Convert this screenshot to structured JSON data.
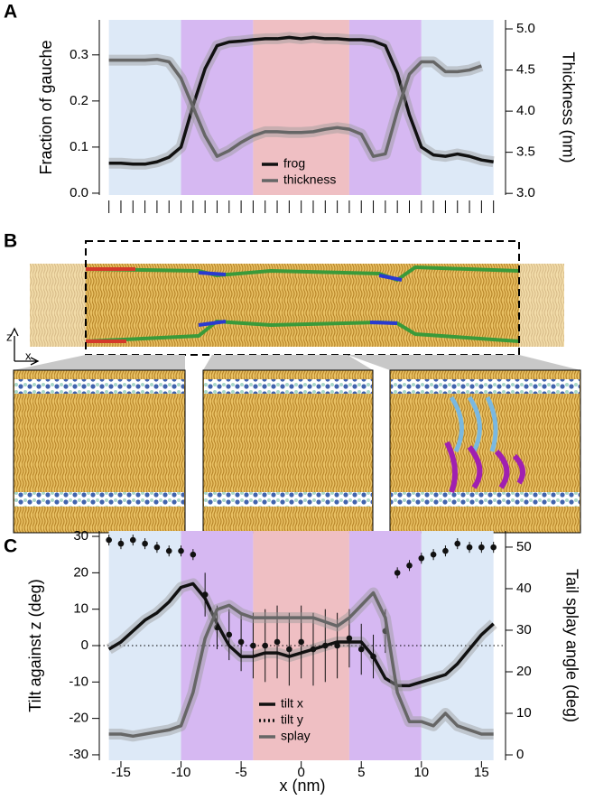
{
  "panel_labels": [
    "A",
    "B",
    "C"
  ],
  "axes_glyph": {
    "z": "z",
    "x": "x"
  },
  "chart_data": [
    {
      "type": "line",
      "ylabel": "Fraction of gauche",
      "y2label": "Thickness (nm)",
      "xlim": [
        -16.8,
        17
      ],
      "xticks": [
        -16,
        -15,
        -14,
        -13,
        -12,
        -11,
        -10,
        -9,
        -8,
        -7,
        -6,
        -5,
        -4,
        -3,
        -2,
        -1,
        0,
        1,
        2,
        3,
        4,
        5,
        6,
        7,
        8,
        9,
        10,
        11,
        12,
        13,
        14,
        15,
        16
      ],
      "xtick_labels": false,
      "ylim": [
        -0.004,
        0.376
      ],
      "yticks": [
        {
          "value": 0,
          "label": "0.0"
        },
        0.1,
        0.2,
        0.3
      ],
      "y2lim": [
        2.98,
        5.11
      ],
      "y2ticks": [
        {
          "value": 3,
          "label": "3.0"
        },
        3.5,
        {
          "value": 4,
          "label": "4.0"
        },
        4.5,
        {
          "value": 5,
          "label": "5.0"
        }
      ],
      "regions": [
        {
          "x": [
            -16,
            -10
          ],
          "color": "#dde9f7"
        },
        {
          "x": [
            -10,
            -4
          ],
          "color": "#d6b8f2"
        },
        {
          "x": [
            -4,
            4
          ],
          "color": "#efbfc3"
        },
        {
          "x": [
            4,
            10
          ],
          "color": "#d6b8f2"
        },
        {
          "x": [
            10,
            16
          ],
          "color": "#dde9f7"
        }
      ],
      "x": [
        -16,
        -15,
        -14,
        -13,
        -12,
        -11,
        -10,
        -9,
        -8,
        -7,
        -6,
        -5,
        -4,
        -3,
        -2,
        -1,
        0,
        1,
        2,
        3,
        4,
        5,
        6,
        7,
        8,
        9,
        10,
        11,
        12,
        13,
        14,
        15,
        16
      ],
      "series": [
        {
          "name": "frog",
          "color": "#111111",
          "values": [
            0.065,
            0.065,
            0.063,
            0.063,
            0.068,
            0.078,
            0.1,
            0.19,
            0.27,
            0.32,
            0.328,
            0.33,
            0.333,
            0.335,
            0.335,
            0.338,
            0.335,
            0.338,
            0.335,
            0.335,
            0.333,
            0.333,
            0.33,
            0.32,
            0.26,
            0.17,
            0.1,
            0.083,
            0.08,
            0.085,
            0.08,
            0.072,
            0.068
          ]
        },
        {
          "name": "thickness",
          "color": "#666666",
          "axis": "y2",
          "values": [
            4.62,
            4.62,
            4.62,
            4.62,
            4.63,
            4.6,
            4.4,
            4.05,
            3.7,
            3.45,
            3.52,
            3.62,
            3.7,
            3.75,
            3.75,
            3.74,
            3.74,
            3.75,
            3.78,
            3.8,
            3.78,
            3.72,
            3.45,
            3.48,
            4.0,
            4.45,
            4.6,
            4.6,
            4.48,
            4.48,
            4.5,
            4.55,
            null
          ]
        }
      ]
    },
    {
      "type": "line",
      "xlabel": "x (nm)",
      "ylabel": "Tilt against z (deg)",
      "y2label": "Tail splay angle (deg)",
      "xlim": [
        -16.8,
        17
      ],
      "xticks": [
        -15,
        -10,
        -5,
        0,
        5,
        10,
        15
      ],
      "xtick_labels": true,
      "ylim": [
        -31.5,
        31.5
      ],
      "yticks": [
        -30,
        -20,
        -10,
        0,
        10,
        20,
        30
      ],
      "y2lim": [
        -1.3,
        53.9
      ],
      "y2ticks": [
        0,
        10,
        20,
        30,
        40,
        50
      ],
      "zero_line": true,
      "regions": [
        {
          "x": [
            -16,
            -10
          ],
          "color": "#dde9f7"
        },
        {
          "x": [
            -10,
            -4
          ],
          "color": "#d6b8f2"
        },
        {
          "x": [
            -4,
            4
          ],
          "color": "#efbfc3"
        },
        {
          "x": [
            4,
            10
          ],
          "color": "#d6b8f2"
        },
        {
          "x": [
            10,
            16
          ],
          "color": "#dde9f7"
        }
      ],
      "x": [
        -16,
        -15,
        -14,
        -13,
        -12,
        -11,
        -10,
        -9,
        -8,
        -7,
        -6,
        -5,
        -4,
        -3,
        -2,
        -1,
        0,
        1,
        2,
        3,
        4,
        5,
        6,
        7,
        8,
        9,
        10,
        11,
        12,
        13,
        14,
        15,
        16
      ],
      "series": [
        {
          "name": "tilt x",
          "color": "#111111",
          "values": [
            -1,
            1,
            4,
            7,
            9,
            12,
            16,
            17,
            13,
            6,
            0,
            -3,
            -3,
            -2,
            -2,
            -3,
            -2,
            -1,
            0,
            1,
            1,
            1,
            -3,
            -9,
            -11,
            -11,
            -10,
            -9,
            -8,
            -5,
            -1,
            3,
            6
          ]
        },
        {
          "name": "tilt y",
          "color": "#111111",
          "mode": "points",
          "dash": "2,3",
          "values": [
            29,
            28,
            29,
            28,
            27,
            26,
            26,
            25,
            14,
            5,
            3,
            1,
            0,
            0,
            1,
            -1,
            1,
            -1,
            0,
            0,
            2,
            -1,
            -3,
            4,
            20,
            22,
            24,
            25,
            26,
            28,
            27,
            27,
            27
          ],
          "errors": [
            1.5,
            1.5,
            1.5,
            1.5,
            1.5,
            1.5,
            1.5,
            1.5,
            6,
            6,
            7,
            8,
            9,
            10,
            10,
            10,
            10,
            10,
            10,
            9,
            8,
            7,
            6,
            6,
            1.5,
            1.5,
            1.5,
            1.5,
            1.5,
            1.5,
            1.5,
            1.5,
            1.5
          ]
        },
        {
          "name": "splay",
          "color": "#666666",
          "axis": "y2",
          "values": [
            5,
            5,
            4.5,
            5,
            5.5,
            6,
            7,
            15,
            28,
            35,
            36,
            34,
            33,
            33,
            33,
            33,
            33,
            33,
            32,
            31,
            33,
            36,
            39,
            33,
            15,
            8,
            8,
            7,
            10,
            7,
            6,
            5,
            5
          ]
        }
      ]
    }
  ]
}
